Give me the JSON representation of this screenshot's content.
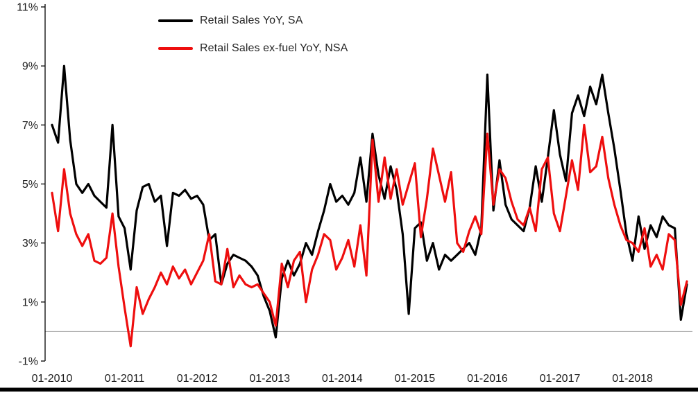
{
  "chart_data": {
    "type": "line",
    "title": "",
    "x_start": "01-2010",
    "x_frequency": "monthly",
    "x_tick_labels": [
      "01-2010",
      "01-2011",
      "01-2012",
      "01-2013",
      "01-2014",
      "01-2015",
      "01-2016",
      "01-2017",
      "01-2018"
    ],
    "y_ticks": [
      11,
      9,
      7,
      5,
      3,
      1,
      -1
    ],
    "y_tick_labels": [
      "11%",
      "9%",
      "7%",
      "5%",
      "3%",
      "1%",
      "-1%"
    ],
    "ylim": [
      -1,
      11
    ],
    "grid": "off",
    "zero_line": true,
    "legend_position": "inside-top-left",
    "series": [
      {
        "name": "Retail Sales YoY, SA",
        "color": "#000000",
        "values": [
          7.0,
          6.4,
          9.0,
          6.5,
          5.0,
          4.7,
          5.0,
          4.6,
          4.4,
          4.2,
          7.0,
          3.9,
          3.5,
          2.1,
          4.1,
          4.9,
          5.0,
          4.4,
          4.6,
          2.9,
          4.7,
          4.6,
          4.8,
          4.5,
          4.6,
          4.3,
          3.1,
          3.3,
          1.6,
          2.3,
          2.6,
          2.5,
          2.4,
          2.2,
          1.9,
          1.2,
          0.7,
          -0.2,
          1.8,
          2.4,
          1.9,
          2.3,
          3.0,
          2.6,
          3.4,
          4.1,
          5.0,
          4.4,
          4.6,
          4.3,
          4.7,
          5.9,
          4.4,
          6.7,
          5.3,
          4.5,
          5.6,
          4.8,
          3.3,
          0.6,
          3.5,
          3.7,
          2.4,
          3.0,
          2.1,
          2.6,
          2.4,
          2.6,
          2.8,
          3.0,
          2.6,
          3.5,
          8.7,
          4.1,
          5.8,
          4.3,
          3.8,
          3.6,
          3.4,
          4.2,
          5.6,
          4.4,
          5.9,
          7.5,
          6.0,
          5.1,
          7.4,
          8.0,
          7.3,
          8.3,
          7.7,
          8.7,
          7.4,
          6.2,
          4.8,
          3.3,
          2.4,
          3.9,
          2.8,
          3.6,
          3.2,
          3.9,
          3.6,
          3.5,
          0.4,
          1.6
        ]
      },
      {
        "name": "Retail Sales ex-fuel YoY, NSA",
        "color": "#ee0e0e",
        "values": [
          4.7,
          3.4,
          5.5,
          4.0,
          3.3,
          2.9,
          3.3,
          2.4,
          2.3,
          2.5,
          4.0,
          2.2,
          0.8,
          -0.5,
          1.5,
          0.6,
          1.1,
          1.5,
          2.0,
          1.6,
          2.2,
          1.8,
          2.1,
          1.6,
          2.0,
          2.4,
          3.3,
          1.7,
          1.6,
          2.8,
          1.5,
          1.9,
          1.6,
          1.5,
          1.6,
          1.3,
          1.0,
          0.2,
          2.3,
          1.5,
          2.4,
          2.7,
          1.0,
          2.1,
          2.6,
          3.3,
          3.1,
          2.1,
          2.5,
          3.1,
          2.2,
          3.6,
          1.9,
          6.5,
          4.4,
          5.9,
          4.5,
          5.5,
          4.3,
          5.0,
          5.7,
          3.2,
          4.5,
          6.2,
          5.3,
          4.4,
          5.4,
          3.0,
          2.7,
          3.4,
          3.9,
          3.3,
          6.7,
          4.3,
          5.5,
          5.2,
          4.4,
          3.8,
          3.6,
          4.2,
          3.4,
          5.5,
          5.9,
          4.0,
          3.4,
          4.6,
          5.8,
          4.8,
          7.0,
          5.4,
          5.6,
          6.6,
          5.2,
          4.3,
          3.6,
          3.1,
          3.0,
          2.7,
          3.5,
          2.2,
          2.6,
          2.1,
          3.3,
          3.1,
          0.9,
          1.7
        ]
      }
    ],
    "colors": {
      "axis": "#000000",
      "zero_line": "#a0a0a0",
      "tick_label": "#1c1c1c",
      "bottom_bar": "#000000"
    }
  }
}
